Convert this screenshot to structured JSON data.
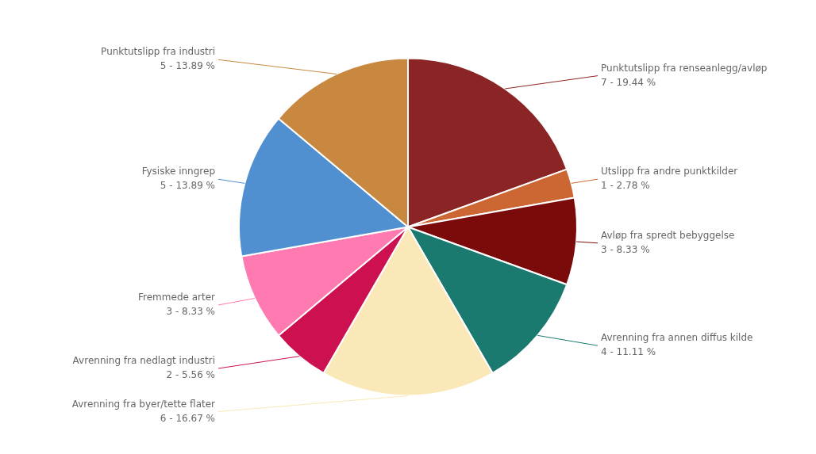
{
  "chart_data": {
    "type": "pie",
    "categories": [
      "Punktutslipp fra renseanlegg/avløp",
      "Utslipp fra andre punktkilder",
      "Avløp fra spredt bebyggelse",
      "Avrenning fra annen diffus kilde",
      "Avrenning fra byer/tette flater",
      "Avrenning fra nedlagt industri",
      "Fremmede arter",
      "Fysiske inngrep",
      "Punktutslipp fra industri"
    ],
    "values": [
      19.44,
      2.78,
      8.33,
      11.11,
      16.67,
      5.56,
      8.33,
      13.89,
      13.89
    ],
    "value_labels": [
      "7 - 19.44 %",
      "1 - 2.78 %",
      "3 - 8.33 %",
      "4 - 11.11 %",
      "6 - 16.67 %",
      "2 - 5.56 %",
      "3 - 8.33 %",
      "5 - 13.89 %",
      "5 - 13.89 %"
    ],
    "data_labels": true,
    "colors": [
      "#8B2525",
      "#CC6633",
      "#7B0B0B",
      "#1A7A70",
      "#FAE8B8",
      "#CC1050",
      "#FF7AB0",
      "#5090D0",
      "#C88840"
    ]
  }
}
